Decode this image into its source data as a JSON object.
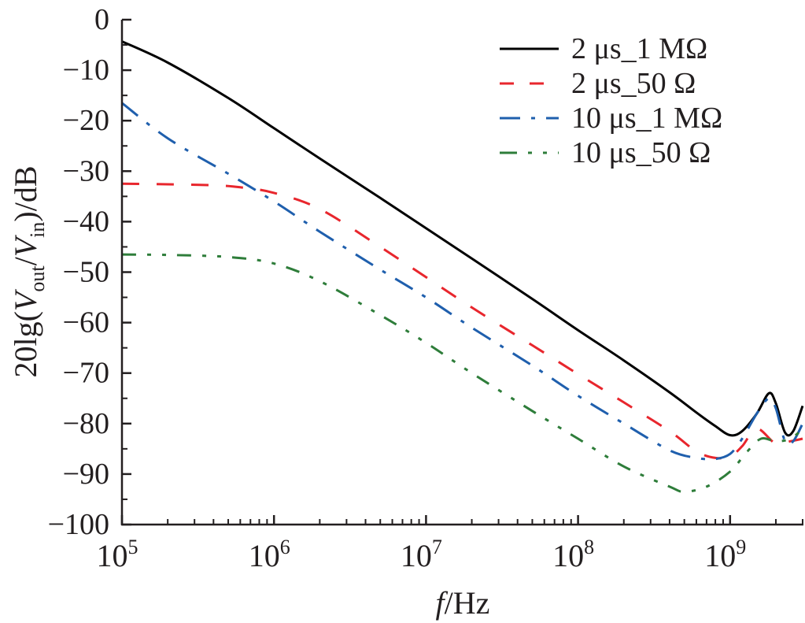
{
  "chart_data": {
    "type": "line",
    "title": "",
    "xlabel_italic": "f",
    "xlabel_rest": "/Hz",
    "ylabel_parts": {
      "prefix": "20lg(",
      "v1": "V",
      "sub1": "out",
      "slash": "/",
      "v2": "V",
      "sub2": "in",
      "suffix": ")/dB"
    },
    "x_scale": "log",
    "xlim": [
      100000,
      3000000000
    ],
    "ylim": [
      -100,
      0
    ],
    "x_ticks": [
      {
        "base": "10",
        "exp": "5",
        "value": 100000
      },
      {
        "base": "10",
        "exp": "6",
        "value": 1000000
      },
      {
        "base": "10",
        "exp": "7",
        "value": 10000000
      },
      {
        "base": "10",
        "exp": "8",
        "value": 100000000
      },
      {
        "base": "10",
        "exp": "9",
        "value": 1000000000
      }
    ],
    "y_ticks": [
      {
        "label": "0",
        "value": 0
      },
      {
        "label": "−10",
        "value": -10
      },
      {
        "label": "−20",
        "value": -20
      },
      {
        "label": "−30",
        "value": -30
      },
      {
        "label": "−40",
        "value": -40
      },
      {
        "label": "−50",
        "value": -50
      },
      {
        "label": "−60",
        "value": -60
      },
      {
        "label": "−70",
        "value": -70
      },
      {
        "label": "−80",
        "value": -80
      },
      {
        "label": "−90",
        "value": -90
      },
      {
        "label": "−100",
        "value": -100
      }
    ],
    "grid": false,
    "legend_position": "top-right",
    "series": [
      {
        "name": "2 μs_1 MΩ",
        "color": "#000000",
        "style": "solid",
        "x": [
          100000.0,
          200000.0,
          500000.0,
          1000000.0,
          2000000.0,
          5000000.0,
          10000000.0,
          20000000.0,
          50000000.0,
          100000000.0,
          200000000.0,
          400000000.0,
          600000000.0,
          800000000.0,
          1000000000.0,
          1200000000.0,
          1500000000.0,
          1800000000.0,
          2000000000.0,
          2300000000.0,
          2600000000.0,
          3000000000.0
        ],
        "y": [
          -4.3,
          -8.5,
          -15.5,
          -21.5,
          -27.5,
          -35.3,
          -41.3,
          -47.3,
          -55.3,
          -61.5,
          -67.5,
          -73.8,
          -77.8,
          -80.5,
          -82.3,
          -81.5,
          -78,
          -74,
          -76,
          -81.8,
          -81.5,
          -76.5
        ]
      },
      {
        "name": "2 μs_50 Ω",
        "color": "#e8262d",
        "style": "dashed",
        "x": [
          100000.0,
          200000.0,
          400000.0,
          600000.0,
          1000000.0,
          2000000.0,
          5000000.0,
          10000000.0,
          20000000.0,
          50000000.0,
          100000000.0,
          200000000.0,
          400000000.0,
          600000000.0,
          800000000.0,
          1000000000.0,
          1200000000.0,
          1500000000.0,
          2000000000.0,
          2500000000.0,
          3000000000.0
        ],
        "y": [
          -32.5,
          -32.6,
          -32.8,
          -33.2,
          -34.3,
          -37.5,
          -45,
          -51,
          -57,
          -64.5,
          -70.2,
          -75.8,
          -81.5,
          -85.5,
          -86.8,
          -86.5,
          -84.5,
          -81,
          -84,
          -83.5,
          -83
        ]
      },
      {
        "name": "10 μs_1 MΩ",
        "color": "#1f5fad",
        "style": "dash-dot",
        "x": [
          100000.0,
          200000.0,
          500000.0,
          1000000.0,
          2000000.0,
          5000000.0,
          10000000.0,
          20000000.0,
          50000000.0,
          100000000.0,
          200000000.0,
          400000000.0,
          600000000.0,
          800000000.0,
          1000000000.0,
          1200000000.0,
          1500000000.0,
          1800000000.0,
          2000000000.0,
          2300000000.0,
          2600000000.0,
          3000000000.0
        ],
        "y": [
          -16.5,
          -23.5,
          -30.5,
          -36,
          -42,
          -49.5,
          -55,
          -61,
          -68.5,
          -74.5,
          -80,
          -85.3,
          -86.8,
          -87,
          -86,
          -83,
          -78,
          -75,
          -77,
          -83.5,
          -83.5,
          -80
        ]
      },
      {
        "name": "10 μs_50 Ω",
        "color": "#2e7d3a",
        "style": "dash-dot-dot",
        "x": [
          100000.0,
          200000.0,
          500000.0,
          1000000.0,
          2000000.0,
          5000000.0,
          10000000.0,
          20000000.0,
          50000000.0,
          100000000.0,
          200000000.0,
          400000000.0,
          500000000.0,
          700000000.0,
          1000000000.0,
          1300000000.0,
          1600000000.0,
          2000000000.0,
          2500000000.0,
          3000000000.0
        ],
        "y": [
          -46.5,
          -46.6,
          -47,
          -48.3,
          -51.8,
          -58.5,
          -64,
          -70,
          -77.5,
          -83,
          -88.5,
          -92.5,
          -93.5,
          -92.5,
          -89.5,
          -85.5,
          -83,
          -83.5,
          -83,
          -81
        ]
      }
    ]
  }
}
